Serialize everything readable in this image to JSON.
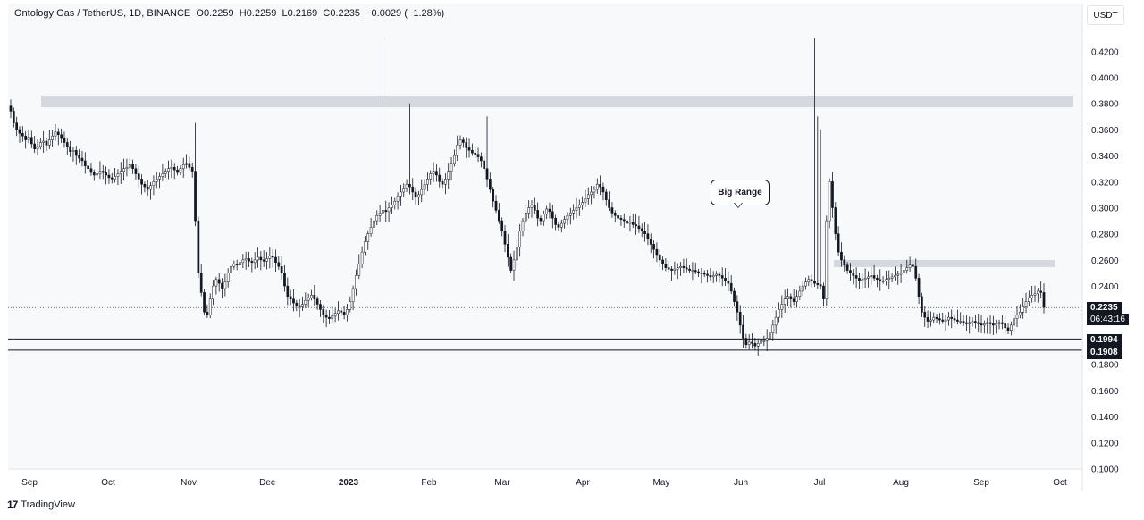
{
  "header": {
    "symbol": "Ontology Gas / TetherUS, 1D, BINANCE",
    "open_label": "O",
    "open": "0.2259",
    "high_label": "H",
    "high": "0.2259",
    "low_label": "L",
    "low": "0.2169",
    "close_label": "C",
    "close": "0.2235",
    "change": "−0.0029 (−1.28%)"
  },
  "currency_button": "USDT",
  "annotation": {
    "text": "Big Range"
  },
  "price_tags": {
    "last_price": "0.2235",
    "countdown": "06:43:16",
    "line_1": "0.1994",
    "line_2": "0.1908"
  },
  "footer": {
    "logo": "17",
    "brand": "TradingView"
  },
  "colors": {
    "candles": "#131722",
    "zones": "#d1d4dc",
    "background": "#f8f9fb"
  },
  "chart_data": {
    "type": "candlestick",
    "title": "",
    "y_axis": {
      "ticks": [
        "0.4200",
        "0.4000",
        "0.3800",
        "0.3600",
        "0.3400",
        "0.3200",
        "0.3000",
        "0.2800",
        "0.2600",
        "0.2400",
        "0.2200",
        "0.2000",
        "0.1800",
        "0.1600",
        "0.1400",
        "0.1200",
        "0.1000"
      ],
      "ylim": [
        0.1,
        0.43
      ]
    },
    "x_axis": {
      "labels": [
        "Sep",
        "Oct",
        "Nov",
        "Dec",
        "2023",
        "Feb",
        "Mar",
        "Apr",
        "May",
        "Jun",
        "Jul",
        "Aug",
        "Sep",
        "Oct"
      ]
    },
    "horizontal_lines": [
      0.1994,
      0.1908
    ],
    "last_price": 0.2235,
    "zones": [
      {
        "from": 0.377,
        "to": 0.386
      },
      {
        "from": 0.2545,
        "to": 0.26
      }
    ],
    "close_series": [
      0.374,
      0.365,
      0.36,
      0.357,
      0.355,
      0.352,
      0.354,
      0.349,
      0.345,
      0.347,
      0.35,
      0.351,
      0.348,
      0.352,
      0.355,
      0.358,
      0.356,
      0.353,
      0.35,
      0.347,
      0.343,
      0.344,
      0.34,
      0.338,
      0.336,
      0.332,
      0.33,
      0.327,
      0.325,
      0.326,
      0.328,
      0.327,
      0.325,
      0.323,
      0.322,
      0.324,
      0.326,
      0.328,
      0.33,
      0.331,
      0.333,
      0.33,
      0.326,
      0.322,
      0.318,
      0.316,
      0.314,
      0.317,
      0.32,
      0.322,
      0.324,
      0.326,
      0.328,
      0.33,
      0.331,
      0.329,
      0.327,
      0.33,
      0.333,
      0.334,
      0.331,
      0.328,
      0.29,
      0.25,
      0.235,
      0.22,
      0.218,
      0.23,
      0.24,
      0.245,
      0.242,
      0.238,
      0.243,
      0.25,
      0.255,
      0.257,
      0.256,
      0.258,
      0.26,
      0.261,
      0.259,
      0.258,
      0.26,
      0.262,
      0.26,
      0.259,
      0.261,
      0.263,
      0.262,
      0.258,
      0.255,
      0.25,
      0.24,
      0.232,
      0.23,
      0.227,
      0.225,
      0.224,
      0.226,
      0.229,
      0.231,
      0.233,
      0.23,
      0.226,
      0.222,
      0.218,
      0.216,
      0.215,
      0.217,
      0.219,
      0.221,
      0.22,
      0.218,
      0.222,
      0.228,
      0.238,
      0.248,
      0.257,
      0.266,
      0.274,
      0.28,
      0.285,
      0.29,
      0.294,
      0.296,
      0.298,
      0.297,
      0.3,
      0.302,
      0.305,
      0.309,
      0.312,
      0.315,
      0.318,
      0.316,
      0.312,
      0.308,
      0.31,
      0.314,
      0.318,
      0.322,
      0.326,
      0.328,
      0.325,
      0.32,
      0.318,
      0.322,
      0.328,
      0.334,
      0.34,
      0.348,
      0.352,
      0.35,
      0.346,
      0.344,
      0.342,
      0.341,
      0.339,
      0.336,
      0.33,
      0.322,
      0.314,
      0.305,
      0.298,
      0.29,
      0.282,
      0.272,
      0.262,
      0.252,
      0.26,
      0.27,
      0.282,
      0.29,
      0.296,
      0.3,
      0.302,
      0.298,
      0.292,
      0.29,
      0.295,
      0.299,
      0.297,
      0.292,
      0.287,
      0.285,
      0.288,
      0.291,
      0.294,
      0.296,
      0.298,
      0.3,
      0.302,
      0.304,
      0.307,
      0.31,
      0.312,
      0.314,
      0.318,
      0.316,
      0.312,
      0.306,
      0.3,
      0.296,
      0.294,
      0.292,
      0.291,
      0.29,
      0.288,
      0.289,
      0.287,
      0.286,
      0.284,
      0.282,
      0.28,
      0.276,
      0.272,
      0.268,
      0.264,
      0.26,
      0.257,
      0.254,
      0.253,
      0.252,
      0.253,
      0.254,
      0.255,
      0.254,
      0.253,
      0.252,
      0.252,
      0.251,
      0.25,
      0.25,
      0.249,
      0.248,
      0.247,
      0.248,
      0.249,
      0.248,
      0.246,
      0.244,
      0.242,
      0.236,
      0.228,
      0.22,
      0.21,
      0.2,
      0.195,
      0.197,
      0.196,
      0.194,
      0.196,
      0.198,
      0.198,
      0.2,
      0.204,
      0.21,
      0.216,
      0.222,
      0.226,
      0.23,
      0.232,
      0.23,
      0.228,
      0.232,
      0.236,
      0.24,
      0.243,
      0.245,
      0.244,
      0.242,
      0.241,
      0.24,
      0.23,
      0.29,
      0.32,
      0.3,
      0.28,
      0.266,
      0.26,
      0.256,
      0.252,
      0.25,
      0.248,
      0.246,
      0.244,
      0.245,
      0.246,
      0.247,
      0.248,
      0.246,
      0.245,
      0.244,
      0.244,
      0.245,
      0.246,
      0.247,
      0.248,
      0.249,
      0.25,
      0.252,
      0.254,
      0.256,
      0.255,
      0.246,
      0.232,
      0.22,
      0.216,
      0.213,
      0.214,
      0.216,
      0.215,
      0.214,
      0.213,
      0.214,
      0.216,
      0.215,
      0.214,
      0.213,
      0.213,
      0.212,
      0.211,
      0.212,
      0.213,
      0.212,
      0.211,
      0.21,
      0.211,
      0.212,
      0.211,
      0.21,
      0.211,
      0.212,
      0.211,
      0.208,
      0.206,
      0.21,
      0.215,
      0.218,
      0.22,
      0.224,
      0.228,
      0.231,
      0.233,
      0.234,
      0.236,
      0.235,
      0.2235
    ]
  }
}
